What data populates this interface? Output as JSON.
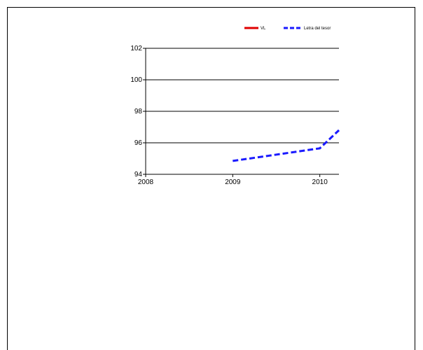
{
  "chart_data": {
    "type": "line",
    "title": "",
    "xlabel": "",
    "ylabel": "",
    "x_ticks": [
      "2008",
      "2009",
      "2010"
    ],
    "y_ticks": [
      "94",
      "96",
      "98",
      "100",
      "102"
    ],
    "xlim": [
      2008,
      2010.22
    ],
    "ylim": [
      94,
      102
    ],
    "grid": "horizontal",
    "legend_position": "top-right",
    "series": [
      {
        "name": "VL",
        "color": "#e00000",
        "dash": "solid",
        "points": []
      },
      {
        "name": "Letra del tesor",
        "color": "#1a1aff",
        "dash": "dashed",
        "points": [
          [
            2009.0,
            94.85
          ],
          [
            2010.0,
            95.65
          ],
          [
            2010.22,
            96.8
          ]
        ]
      }
    ]
  }
}
